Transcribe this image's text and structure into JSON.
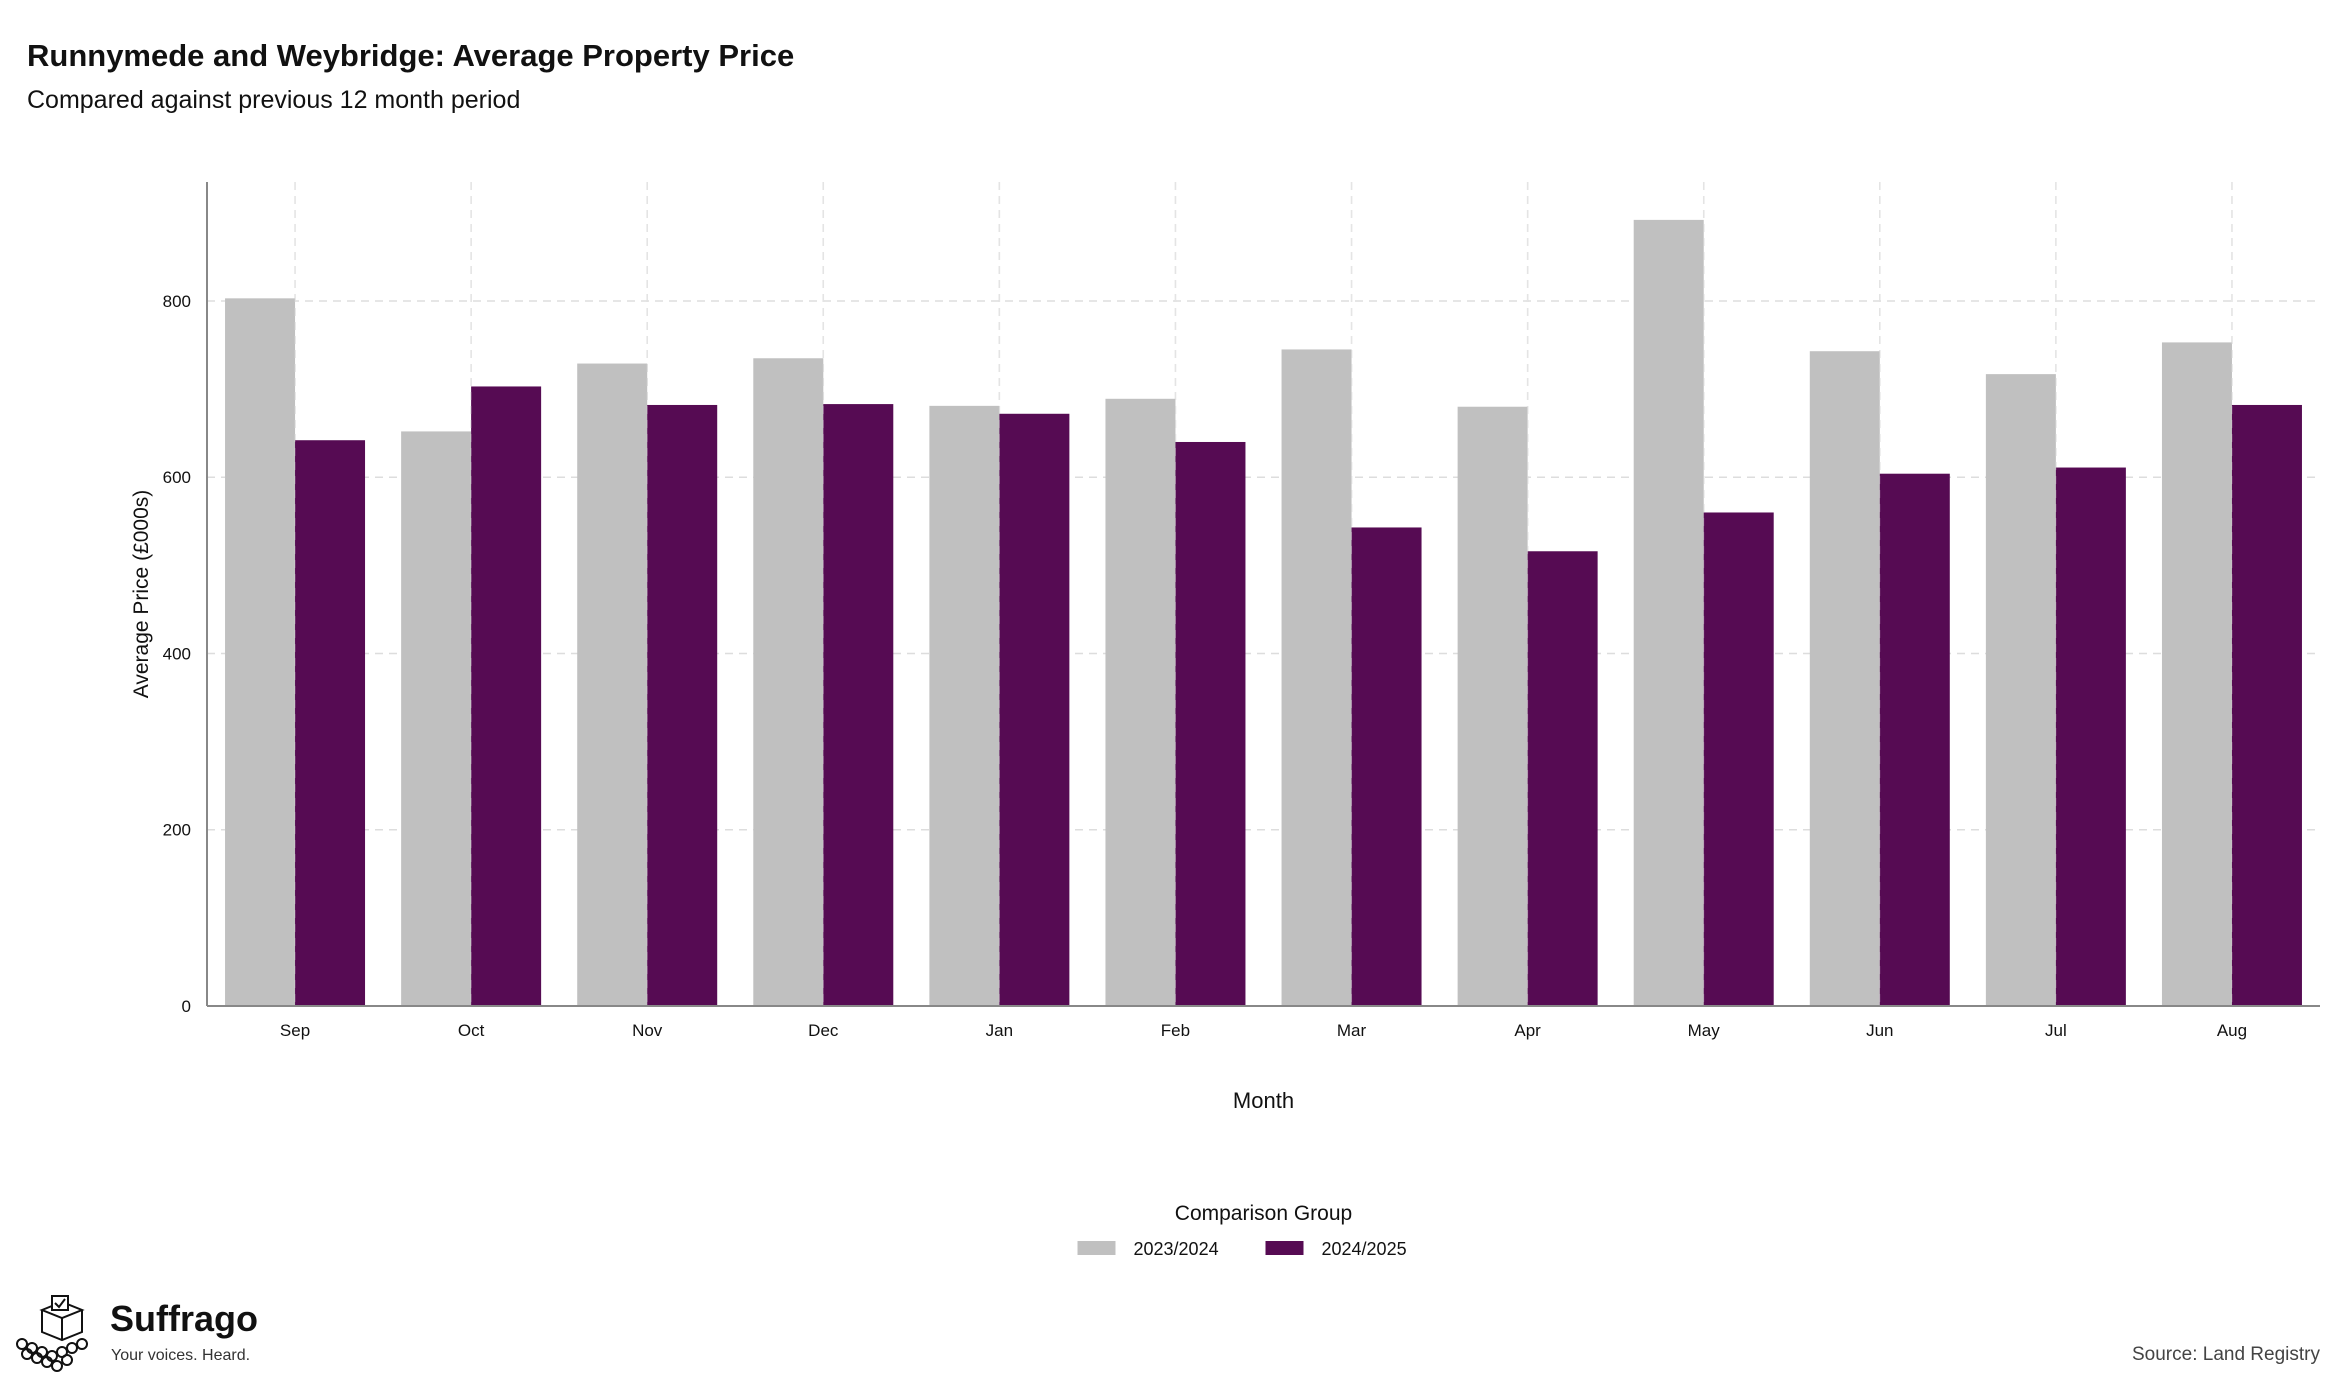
{
  "header": {
    "title": "Runnymede and Weybridge: Average Property Price",
    "subtitle": "Compared against previous 12 month period"
  },
  "footer": {
    "brand": "Suffrago",
    "tagline": "Your voices. Heard.",
    "source": "Source: Land Registry"
  },
  "colors": {
    "series_2023": "#c0c0c0",
    "series_2024": "#560b53",
    "grid": "#dddddd",
    "axis": "#888888"
  },
  "chart_data": {
    "type": "bar",
    "title": "Runnymede and Weybridge: Average Property Price",
    "subtitle": "Compared against previous 12 month period",
    "xlabel": "Month",
    "ylabel": "Average Price (£000s)",
    "ylim": [
      0,
      935
    ],
    "yticks": [
      0,
      200,
      400,
      600,
      800
    ],
    "grid": true,
    "legend_title": "Comparison Group",
    "legend_position": "bottom",
    "categories": [
      "Sep",
      "Oct",
      "Nov",
      "Dec",
      "Jan",
      "Feb",
      "Mar",
      "Apr",
      "May",
      "Jun",
      "Jul",
      "Aug"
    ],
    "series": [
      {
        "name": "2023/2024",
        "values": [
          803,
          652,
          729,
          735,
          681,
          689,
          745,
          680,
          892,
          743,
          717,
          753
        ]
      },
      {
        "name": "2024/2025",
        "values": [
          642,
          703,
          682,
          683,
          672,
          640,
          543,
          516,
          560,
          604,
          611,
          682
        ]
      }
    ]
  }
}
